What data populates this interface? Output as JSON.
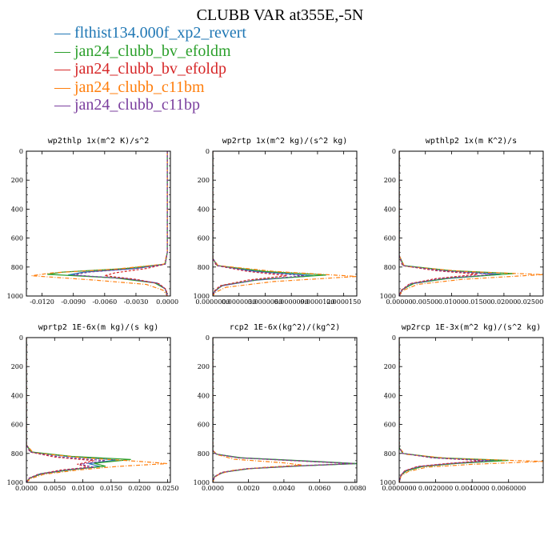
{
  "title": "CLUBB VAR at355E,-5N",
  "legend": [
    {
      "name": "flthist134.000f_xp2_revert",
      "color": "#1f77b4"
    },
    {
      "name": "jan24_clubb_bv_efoldm",
      "color": "#2ca02c"
    },
    {
      "name": "jan24_clubb_bv_efoldp",
      "color": "#d62728"
    },
    {
      "name": "jan24_clubb_c11bm",
      "color": "#ff7f0e"
    },
    {
      "name": "jan24_clubb_c11bp",
      "color": "#7b3f9e"
    }
  ],
  "chart_data": [
    {
      "type": "line",
      "title": "wp2thlp  1x(m^2 K)/s^2",
      "xlim": [
        -0.0135,
        0.0003
      ],
      "ylim": [
        1000,
        0
      ],
      "xticks": [
        "-0.0120",
        "-0.0090",
        "-0.0060",
        "-0.0030",
        "0.0000"
      ],
      "xtick_values": [
        -0.012,
        -0.009,
        -0.006,
        -0.003,
        0.0
      ],
      "yticks": [
        "0",
        "200",
        "400",
        "600",
        "800",
        "1000"
      ],
      "ytick_values": [
        0,
        200,
        400,
        600,
        800,
        1000
      ],
      "series": [
        {
          "color": "#1f77b4",
          "style": "solid",
          "y": [
            0,
            700,
            780,
            810,
            835,
            855,
            880,
            910,
            950,
            1000
          ],
          "x": [
            0.0,
            0.0,
            -0.0002,
            -0.003,
            -0.008,
            -0.0095,
            -0.004,
            -0.001,
            -0.0002,
            0.0
          ]
        },
        {
          "color": "#2ca02c",
          "style": "solid",
          "y": [
            0,
            700,
            780,
            810,
            835,
            850,
            875,
            910,
            950,
            1000
          ],
          "x": [
            0.0,
            0.0,
            -0.0002,
            -0.004,
            -0.01,
            -0.0115,
            -0.005,
            -0.0012,
            -0.0002,
            0.0
          ]
        },
        {
          "color": "#d62728",
          "style": "dashed",
          "y": [
            0,
            700,
            780,
            810,
            840,
            860,
            885,
            915,
            955,
            1000
          ],
          "x": [
            0.0,
            0.0,
            -0.0002,
            -0.002,
            -0.005,
            -0.006,
            -0.003,
            -0.0008,
            -0.0001,
            0.0
          ]
        },
        {
          "color": "#ff7f0e",
          "style": "dashdot",
          "y": [
            0,
            700,
            780,
            815,
            840,
            860,
            890,
            920,
            960,
            1000
          ],
          "x": [
            0.0,
            0.0,
            -0.0003,
            -0.005,
            -0.011,
            -0.013,
            -0.007,
            -0.002,
            -0.0004,
            0.0
          ]
        },
        {
          "color": "#7b3f9e",
          "style": "dashed",
          "y": [
            0,
            700,
            780,
            810,
            835,
            855,
            880,
            910,
            950,
            1000
          ],
          "x": [
            0.0,
            0.0,
            -0.0002,
            -0.003,
            -0.0075,
            -0.009,
            -0.004,
            -0.001,
            -0.0002,
            0.0
          ]
        }
      ]
    },
    {
      "type": "line",
      "title": "wp2rtp  1x(m^2 kg)/(s^2 kg)",
      "xlim": [
        0,
        1.65e-05
      ],
      "ylim": [
        1000,
        0
      ],
      "xticks": [
        "0.0000000",
        "0.0000030",
        "0.0000060",
        "0.0000090",
        "0.0000120",
        "0.0000150"
      ],
      "xtick_values": [
        0,
        3e-06,
        6e-06,
        9e-06,
        1.2e-05,
        1.5e-05
      ],
      "yticks": [
        "0",
        "200",
        "400",
        "600",
        "800",
        "1000"
      ],
      "ytick_values": [
        0,
        200,
        400,
        600,
        800,
        1000
      ],
      "series": [
        {
          "color": "#1f77b4",
          "style": "solid",
          "y": [
            0,
            740,
            790,
            830,
            860,
            890,
            930,
            970,
            1000
          ],
          "x": [
            0,
            0,
            5e-07,
            5e-06,
            1.15e-05,
            5e-06,
            1e-06,
            2e-07,
            0
          ]
        },
        {
          "color": "#2ca02c",
          "style": "solid",
          "y": [
            0,
            740,
            790,
            830,
            855,
            885,
            925,
            965,
            1000
          ],
          "x": [
            0,
            0,
            5e-07,
            6e-06,
            1.3e-05,
            5.5e-06,
            1.2e-06,
            2e-07,
            0
          ]
        },
        {
          "color": "#d62728",
          "style": "dashed",
          "y": [
            0,
            740,
            790,
            830,
            860,
            890,
            930,
            970,
            1000
          ],
          "x": [
            0,
            0,
            4e-07,
            4e-06,
            8.5e-06,
            4e-06,
            8e-07,
            1e-07,
            0
          ]
        },
        {
          "color": "#ff7f0e",
          "style": "dashdot",
          "y": [
            0,
            740,
            790,
            830,
            865,
            900,
            940,
            975,
            1000
          ],
          "x": [
            0,
            0,
            6e-07,
            7e-06,
            1.65e-05,
            7e-06,
            1.5e-06,
            3e-07,
            0
          ]
        },
        {
          "color": "#7b3f9e",
          "style": "dashed",
          "y": [
            0,
            740,
            790,
            830,
            860,
            890,
            930,
            970,
            1000
          ],
          "x": [
            0,
            0,
            5e-07,
            4.5e-06,
            1.05e-05,
            4.8e-06,
            1e-06,
            2e-07,
            0
          ]
        }
      ]
    },
    {
      "type": "line",
      "title": "wpthlp2  1x(m K^2)/s",
      "xlim": [
        0,
        0.0275
      ],
      "ylim": [
        1000,
        0
      ],
      "xticks": [
        "0.00000",
        "0.00500",
        "0.01000",
        "0.01500",
        "0.02000",
        "0.02500"
      ],
      "xtick_values": [
        0,
        0.005,
        0.01,
        0.015,
        0.02,
        0.025
      ],
      "yticks": [
        "0",
        "200",
        "400",
        "600",
        "800",
        "1000"
      ],
      "ytick_values": [
        0,
        200,
        400,
        600,
        800,
        1000
      ],
      "series": [
        {
          "color": "#1f77b4",
          "style": "solid",
          "y": [
            0,
            720,
            790,
            825,
            850,
            880,
            915,
            960,
            1000
          ],
          "x": [
            0,
            0,
            0.0008,
            0.009,
            0.0195,
            0.009,
            0.0025,
            0.0005,
            0
          ]
        },
        {
          "color": "#2ca02c",
          "style": "solid",
          "y": [
            0,
            720,
            790,
            825,
            845,
            875,
            910,
            955,
            1000
          ],
          "x": [
            0,
            0,
            0.0009,
            0.01,
            0.022,
            0.01,
            0.003,
            0.0006,
            0
          ]
        },
        {
          "color": "#d62728",
          "style": "dashed",
          "y": [
            0,
            720,
            790,
            825,
            850,
            880,
            915,
            960,
            1000
          ],
          "x": [
            0,
            0,
            0.0006,
            0.007,
            0.015,
            0.007,
            0.002,
            0.0004,
            0
          ]
        },
        {
          "color": "#ff7f0e",
          "style": "dashdot",
          "y": [
            0,
            720,
            795,
            830,
            852,
            885,
            920,
            962,
            1000
          ],
          "x": [
            0,
            0,
            0.001,
            0.012,
            0.0275,
            0.012,
            0.0035,
            0.0007,
            0
          ]
        },
        {
          "color": "#7b3f9e",
          "style": "dashed",
          "y": [
            0,
            720,
            790,
            825,
            850,
            880,
            915,
            960,
            1000
          ],
          "x": [
            0,
            0,
            0.0007,
            0.008,
            0.018,
            0.008,
            0.0022,
            0.0005,
            0
          ]
        }
      ]
    },
    {
      "type": "line",
      "title": "wprtp2  1E-6x(m kg)/(s kg)",
      "xlim": [
        0,
        0.0255
      ],
      "ylim": [
        1000,
        0
      ],
      "xticks": [
        "0.0000",
        "0.0050",
        "0.0100",
        "0.0150",
        "0.0200",
        "0.0250"
      ],
      "xtick_values": [
        0,
        0.005,
        0.01,
        0.015,
        0.02,
        0.025
      ],
      "yticks": [
        "0",
        "200",
        "400",
        "600",
        "800",
        "1000"
      ],
      "ytick_values": [
        0,
        200,
        400,
        600,
        800,
        1000
      ],
      "series": [
        {
          "color": "#1f77b4",
          "style": "solid",
          "y": [
            0,
            740,
            790,
            820,
            845,
            870,
            890,
            910,
            940,
            970,
            1000
          ],
          "x": [
            0,
            0,
            0.0008,
            0.007,
            0.016,
            0.011,
            0.013,
            0.008,
            0.0025,
            0.0006,
            0
          ]
        },
        {
          "color": "#2ca02c",
          "style": "solid",
          "y": [
            0,
            740,
            790,
            820,
            842,
            868,
            888,
            910,
            940,
            970,
            1000
          ],
          "x": [
            0,
            0,
            0.0009,
            0.008,
            0.0185,
            0.012,
            0.014,
            0.0085,
            0.0028,
            0.0006,
            0
          ]
        },
        {
          "color": "#d62728",
          "style": "dashed",
          "y": [
            0,
            740,
            790,
            825,
            850,
            875,
            895,
            915,
            945,
            972,
            1000
          ],
          "x": [
            0,
            0,
            0.0006,
            0.005,
            0.012,
            0.009,
            0.011,
            0.006,
            0.002,
            0.0004,
            0
          ]
        },
        {
          "color": "#ff7f0e",
          "style": "dashdot",
          "y": [
            0,
            740,
            795,
            830,
            855,
            870,
            890,
            915,
            945,
            975,
            1000
          ],
          "x": [
            0,
            0,
            0.0012,
            0.01,
            0.02,
            0.025,
            0.016,
            0.009,
            0.003,
            0.0007,
            0
          ]
        },
        {
          "color": "#7b3f9e",
          "style": "dashed",
          "y": [
            0,
            740,
            790,
            825,
            850,
            875,
            895,
            915,
            945,
            972,
            1000
          ],
          "x": [
            0,
            0,
            0.0007,
            0.006,
            0.014,
            0.0095,
            0.012,
            0.007,
            0.0022,
            0.0005,
            0
          ]
        }
      ]
    },
    {
      "type": "line",
      "title": "rcp2  1E-6x(kg^2)/(kg^2)",
      "xlim": [
        0,
        0.0081
      ],
      "ylim": [
        1000,
        0
      ],
      "xticks": [
        "0.0000",
        "0.0020",
        "0.0040",
        "0.0060",
        "0.0080"
      ],
      "xtick_values": [
        0,
        0.002,
        0.004,
        0.006,
        0.008
      ],
      "yticks": [
        "0",
        "200",
        "400",
        "600",
        "800",
        "1000"
      ],
      "ytick_values": [
        0,
        200,
        400,
        600,
        800,
        1000
      ],
      "series": [
        {
          "color": "#1f77b4",
          "style": "solid",
          "y": [
            0,
            780,
            805,
            830,
            855,
            870,
            885,
            905,
            930,
            960,
            1000
          ],
          "x": [
            0,
            0,
            0.0002,
            0.0015,
            0.0055,
            0.0081,
            0.005,
            0.002,
            0.0006,
            0.0001,
            0
          ]
        },
        {
          "color": "#2ca02c",
          "style": "solid",
          "y": [
            0,
            780,
            805,
            830,
            855,
            870,
            885,
            905,
            930,
            960,
            1000
          ],
          "x": [
            0,
            0,
            0.0002,
            0.0016,
            0.0058,
            0.0081,
            0.0052,
            0.0021,
            0.0006,
            0.0001,
            0
          ]
        },
        {
          "color": "#d62728",
          "style": "dashed",
          "y": [
            0,
            780,
            805,
            830,
            855,
            870,
            885,
            905,
            930,
            960,
            1000
          ],
          "x": [
            0,
            0,
            0.0002,
            0.0014,
            0.0053,
            0.0079,
            0.0049,
            0.0019,
            0.0005,
            0.0001,
            0
          ]
        },
        {
          "color": "#ff7f0e",
          "style": "dashdot",
          "y": [
            0,
            780,
            810,
            840,
            865,
            880,
            895,
            915,
            940,
            965,
            1000
          ],
          "x": [
            0,
            0,
            0.0003,
            0.0012,
            0.004,
            0.005,
            0.003,
            0.0012,
            0.0004,
            0.0001,
            0
          ]
        },
        {
          "color": "#7b3f9e",
          "style": "dashed",
          "y": [
            0,
            780,
            805,
            830,
            855,
            870,
            885,
            905,
            930,
            960,
            1000
          ],
          "x": [
            0,
            0,
            0.0002,
            0.0015,
            0.0056,
            0.008,
            0.0051,
            0.002,
            0.0006,
            0.0001,
            0
          ]
        }
      ]
    },
    {
      "type": "line",
      "title": "wp2rcp  1E-3x(m^2 kg)/(s^2 kg)",
      "xlim": [
        0,
        0.0079
      ],
      "ylim": [
        1000,
        0
      ],
      "xticks": [
        "0.0000000",
        "0.0020000",
        "0.0040000",
        "0.0060000"
      ],
      "xtick_values": [
        0,
        0.002,
        0.004,
        0.006
      ],
      "yticks": [
        "0",
        "200",
        "400",
        "600",
        "800",
        "1000"
      ],
      "ytick_values": [
        0,
        200,
        400,
        600,
        800,
        1000
      ],
      "series": [
        {
          "color": "#1f77b4",
          "style": "solid",
          "y": [
            0,
            760,
            800,
            830,
            850,
            870,
            890,
            920,
            950,
            1000
          ],
          "x": [
            0,
            0,
            0.0002,
            0.002,
            0.0055,
            0.003,
            0.0012,
            0.0004,
            0.0001,
            0
          ]
        },
        {
          "color": "#2ca02c",
          "style": "solid",
          "y": [
            0,
            760,
            800,
            830,
            848,
            868,
            890,
            920,
            950,
            1000
          ],
          "x": [
            0,
            0,
            0.0002,
            0.0022,
            0.006,
            0.0032,
            0.0013,
            0.0004,
            0.0001,
            0
          ]
        },
        {
          "color": "#d62728",
          "style": "dashed",
          "y": [
            0,
            760,
            800,
            830,
            850,
            870,
            890,
            920,
            950,
            1000
          ],
          "x": [
            0,
            0,
            0.0002,
            0.0018,
            0.0046,
            0.0026,
            0.001,
            0.0003,
            0.0001,
            0
          ]
        },
        {
          "color": "#ff7f0e",
          "style": "dashdot",
          "y": [
            0,
            760,
            805,
            835,
            855,
            875,
            895,
            925,
            955,
            1000
          ],
          "x": [
            0,
            0,
            0.0003,
            0.0028,
            0.0079,
            0.004,
            0.0015,
            0.0005,
            0.0001,
            0
          ]
        },
        {
          "color": "#7b3f9e",
          "style": "dashed",
          "y": [
            0,
            760,
            800,
            830,
            850,
            870,
            890,
            920,
            950,
            1000
          ],
          "x": [
            0,
            0,
            0.0002,
            0.0019,
            0.005,
            0.0028,
            0.0011,
            0.0003,
            0.0001,
            0
          ]
        }
      ]
    }
  ]
}
